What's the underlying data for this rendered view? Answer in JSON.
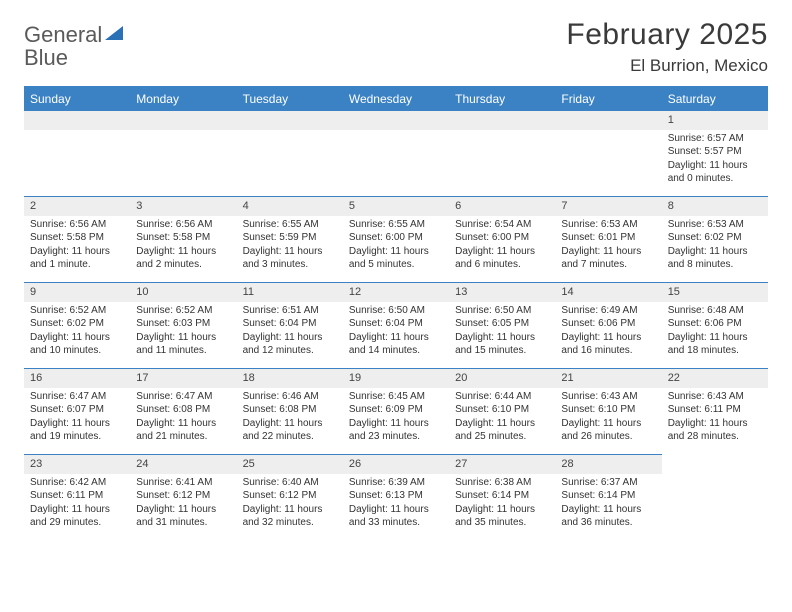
{
  "header": {
    "logo_general": "General",
    "logo_blue": "Blue",
    "month_title": "February 2025",
    "location": "El Burrion, Mexico"
  },
  "colors": {
    "header_bg": "#3a82c4",
    "header_text": "#ffffff",
    "daynum_bg": "#eeeeee",
    "border": "#3a82c4",
    "text": "#333333"
  },
  "day_names": [
    "Sunday",
    "Monday",
    "Tuesday",
    "Wednesday",
    "Thursday",
    "Friday",
    "Saturday"
  ],
  "weeks": [
    [
      null,
      null,
      null,
      null,
      null,
      null,
      {
        "n": "1",
        "sunrise": "Sunrise: 6:57 AM",
        "sunset": "Sunset: 5:57 PM",
        "day1": "Daylight: 11 hours",
        "day2": "and 0 minutes."
      }
    ],
    [
      {
        "n": "2",
        "sunrise": "Sunrise: 6:56 AM",
        "sunset": "Sunset: 5:58 PM",
        "day1": "Daylight: 11 hours",
        "day2": "and 1 minute."
      },
      {
        "n": "3",
        "sunrise": "Sunrise: 6:56 AM",
        "sunset": "Sunset: 5:58 PM",
        "day1": "Daylight: 11 hours",
        "day2": "and 2 minutes."
      },
      {
        "n": "4",
        "sunrise": "Sunrise: 6:55 AM",
        "sunset": "Sunset: 5:59 PM",
        "day1": "Daylight: 11 hours",
        "day2": "and 3 minutes."
      },
      {
        "n": "5",
        "sunrise": "Sunrise: 6:55 AM",
        "sunset": "Sunset: 6:00 PM",
        "day1": "Daylight: 11 hours",
        "day2": "and 5 minutes."
      },
      {
        "n": "6",
        "sunrise": "Sunrise: 6:54 AM",
        "sunset": "Sunset: 6:00 PM",
        "day1": "Daylight: 11 hours",
        "day2": "and 6 minutes."
      },
      {
        "n": "7",
        "sunrise": "Sunrise: 6:53 AM",
        "sunset": "Sunset: 6:01 PM",
        "day1": "Daylight: 11 hours",
        "day2": "and 7 minutes."
      },
      {
        "n": "8",
        "sunrise": "Sunrise: 6:53 AM",
        "sunset": "Sunset: 6:02 PM",
        "day1": "Daylight: 11 hours",
        "day2": "and 8 minutes."
      }
    ],
    [
      {
        "n": "9",
        "sunrise": "Sunrise: 6:52 AM",
        "sunset": "Sunset: 6:02 PM",
        "day1": "Daylight: 11 hours",
        "day2": "and 10 minutes."
      },
      {
        "n": "10",
        "sunrise": "Sunrise: 6:52 AM",
        "sunset": "Sunset: 6:03 PM",
        "day1": "Daylight: 11 hours",
        "day2": "and 11 minutes."
      },
      {
        "n": "11",
        "sunrise": "Sunrise: 6:51 AM",
        "sunset": "Sunset: 6:04 PM",
        "day1": "Daylight: 11 hours",
        "day2": "and 12 minutes."
      },
      {
        "n": "12",
        "sunrise": "Sunrise: 6:50 AM",
        "sunset": "Sunset: 6:04 PM",
        "day1": "Daylight: 11 hours",
        "day2": "and 14 minutes."
      },
      {
        "n": "13",
        "sunrise": "Sunrise: 6:50 AM",
        "sunset": "Sunset: 6:05 PM",
        "day1": "Daylight: 11 hours",
        "day2": "and 15 minutes."
      },
      {
        "n": "14",
        "sunrise": "Sunrise: 6:49 AM",
        "sunset": "Sunset: 6:06 PM",
        "day1": "Daylight: 11 hours",
        "day2": "and 16 minutes."
      },
      {
        "n": "15",
        "sunrise": "Sunrise: 6:48 AM",
        "sunset": "Sunset: 6:06 PM",
        "day1": "Daylight: 11 hours",
        "day2": "and 18 minutes."
      }
    ],
    [
      {
        "n": "16",
        "sunrise": "Sunrise: 6:47 AM",
        "sunset": "Sunset: 6:07 PM",
        "day1": "Daylight: 11 hours",
        "day2": "and 19 minutes."
      },
      {
        "n": "17",
        "sunrise": "Sunrise: 6:47 AM",
        "sunset": "Sunset: 6:08 PM",
        "day1": "Daylight: 11 hours",
        "day2": "and 21 minutes."
      },
      {
        "n": "18",
        "sunrise": "Sunrise: 6:46 AM",
        "sunset": "Sunset: 6:08 PM",
        "day1": "Daylight: 11 hours",
        "day2": "and 22 minutes."
      },
      {
        "n": "19",
        "sunrise": "Sunrise: 6:45 AM",
        "sunset": "Sunset: 6:09 PM",
        "day1": "Daylight: 11 hours",
        "day2": "and 23 minutes."
      },
      {
        "n": "20",
        "sunrise": "Sunrise: 6:44 AM",
        "sunset": "Sunset: 6:10 PM",
        "day1": "Daylight: 11 hours",
        "day2": "and 25 minutes."
      },
      {
        "n": "21",
        "sunrise": "Sunrise: 6:43 AM",
        "sunset": "Sunset: 6:10 PM",
        "day1": "Daylight: 11 hours",
        "day2": "and 26 minutes."
      },
      {
        "n": "22",
        "sunrise": "Sunrise: 6:43 AM",
        "sunset": "Sunset: 6:11 PM",
        "day1": "Daylight: 11 hours",
        "day2": "and 28 minutes."
      }
    ],
    [
      {
        "n": "23",
        "sunrise": "Sunrise: 6:42 AM",
        "sunset": "Sunset: 6:11 PM",
        "day1": "Daylight: 11 hours",
        "day2": "and 29 minutes."
      },
      {
        "n": "24",
        "sunrise": "Sunrise: 6:41 AM",
        "sunset": "Sunset: 6:12 PM",
        "day1": "Daylight: 11 hours",
        "day2": "and 31 minutes."
      },
      {
        "n": "25",
        "sunrise": "Sunrise: 6:40 AM",
        "sunset": "Sunset: 6:12 PM",
        "day1": "Daylight: 11 hours",
        "day2": "and 32 minutes."
      },
      {
        "n": "26",
        "sunrise": "Sunrise: 6:39 AM",
        "sunset": "Sunset: 6:13 PM",
        "day1": "Daylight: 11 hours",
        "day2": "and 33 minutes."
      },
      {
        "n": "27",
        "sunrise": "Sunrise: 6:38 AM",
        "sunset": "Sunset: 6:14 PM",
        "day1": "Daylight: 11 hours",
        "day2": "and 35 minutes."
      },
      {
        "n": "28",
        "sunrise": "Sunrise: 6:37 AM",
        "sunset": "Sunset: 6:14 PM",
        "day1": "Daylight: 11 hours",
        "day2": "and 36 minutes."
      },
      null
    ]
  ]
}
